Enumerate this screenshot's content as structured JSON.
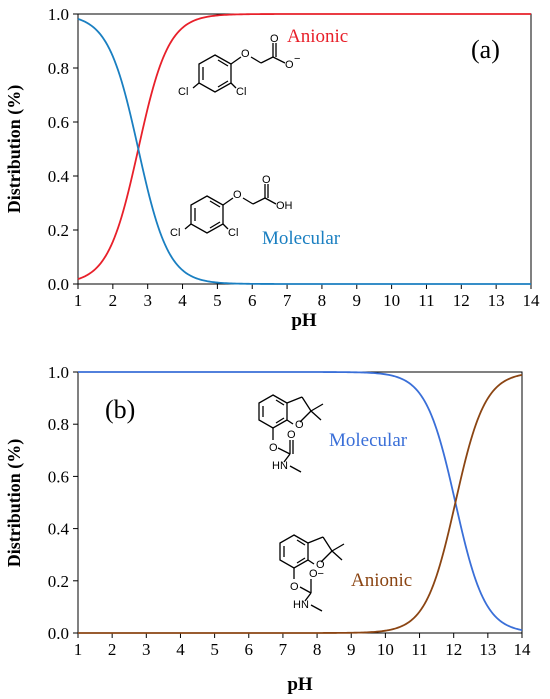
{
  "chart_data": [
    {
      "type": "line",
      "panel_label": "(a)",
      "xlabel": "pH",
      "ylabel": "Distribution (%)",
      "xlim": [
        1,
        14
      ],
      "ylim": [
        0,
        1
      ],
      "xticks": [
        "1",
        "2",
        "3",
        "4",
        "5",
        "6",
        "7",
        "8",
        "9",
        "10",
        "11",
        "12",
        "13",
        "14"
      ],
      "yticks": [
        "0.0",
        "0.2",
        "0.4",
        "0.6",
        "0.8",
        "1.0"
      ],
      "grid": false,
      "pKa": 2.73,
      "series": [
        {
          "name": "Anionic",
          "color": "#e8202a",
          "x": [
            1.0,
            1.25,
            1.5,
            1.75,
            2.0,
            2.25,
            2.5,
            2.75,
            3.0,
            3.25,
            3.5,
            3.75,
            4.0,
            4.25,
            4.5,
            4.75,
            5.0,
            5.5,
            6.0,
            7.0,
            8.0,
            9.0,
            10.0,
            11.0,
            12.0,
            13.0,
            14.0
          ],
          "y": [
            0.018,
            0.032,
            0.055,
            0.095,
            0.156,
            0.248,
            0.37,
            0.512,
            0.651,
            0.769,
            0.855,
            0.913,
            0.949,
            0.971,
            0.983,
            0.99,
            0.995,
            0.998,
            0.999,
            1.0,
            1.0,
            1.0,
            1.0,
            1.0,
            1.0,
            1.0,
            1.0
          ]
        },
        {
          "name": "Molecular",
          "color": "#1a7fc1",
          "x": [
            1.0,
            1.25,
            1.5,
            1.75,
            2.0,
            2.25,
            2.5,
            2.75,
            3.0,
            3.25,
            3.5,
            3.75,
            4.0,
            4.25,
            4.5,
            4.75,
            5.0,
            5.5,
            6.0,
            7.0,
            8.0,
            9.0,
            10.0,
            11.0,
            12.0,
            13.0,
            14.0
          ],
          "y": [
            0.982,
            0.968,
            0.945,
            0.905,
            0.844,
            0.752,
            0.63,
            0.488,
            0.349,
            0.231,
            0.145,
            0.087,
            0.051,
            0.029,
            0.017,
            0.01,
            0.005,
            0.002,
            0.001,
            0.0,
            0.0,
            0.0,
            0.0,
            0.0,
            0.0,
            0.0,
            0.0
          ]
        }
      ],
      "structures": [
        {
          "atoms": [
            "Cl",
            "Cl",
            "O",
            "O",
            "O"
          ],
          "charge": "−"
        },
        {
          "atoms": [
            "Cl",
            "Cl",
            "O",
            "O",
            "OH"
          ]
        }
      ]
    },
    {
      "type": "line",
      "panel_label": "(b)",
      "xlabel": "pH",
      "ylabel": "Distribution (%)",
      "xlim": [
        1,
        14
      ],
      "ylim": [
        0,
        1
      ],
      "xticks": [
        "1",
        "2",
        "3",
        "4",
        "5",
        "6",
        "7",
        "8",
        "9",
        "10",
        "11",
        "12",
        "13",
        "14"
      ],
      "yticks": [
        "0.0",
        "0.2",
        "0.4",
        "0.6",
        "0.8",
        "1.0"
      ],
      "grid": false,
      "pKa": 12.05,
      "series": [
        {
          "name": "Molecular",
          "color": "#3a6fd8",
          "x": [
            1.0,
            2.0,
            3.0,
            4.0,
            5.0,
            6.0,
            7.0,
            8.0,
            8.5,
            9.0,
            9.5,
            10.0,
            10.5,
            11.0,
            11.25,
            11.5,
            11.75,
            12.0,
            12.25,
            12.5,
            12.75,
            13.0,
            13.25,
            13.5,
            13.75,
            14.0
          ],
          "y": [
            1.0,
            1.0,
            1.0,
            1.0,
            1.0,
            1.0,
            1.0,
            0.9997,
            0.9992,
            0.998,
            0.992,
            0.975,
            0.928,
            0.808,
            0.715,
            0.595,
            0.464,
            0.337,
            0.229,
            0.147,
            0.092,
            0.056,
            0.032,
            0.018,
            0.011,
            0.006
          ]
        },
        {
          "name": "Anionic",
          "color": "#8b4513",
          "x": [
            1.0,
            2.0,
            3.0,
            4.0,
            5.0,
            6.0,
            7.0,
            8.0,
            8.5,
            9.0,
            9.5,
            10.0,
            10.5,
            11.0,
            11.25,
            11.5,
            11.75,
            12.0,
            12.25,
            12.5,
            12.75,
            13.0,
            13.25,
            13.5,
            13.75,
            14.0
          ],
          "y": [
            0.0,
            0.0,
            0.0,
            0.0,
            0.0,
            0.0,
            0.0,
            0.0003,
            0.0008,
            0.002,
            0.008,
            0.025,
            0.072,
            0.192,
            0.285,
            0.405,
            0.536,
            0.663,
            0.771,
            0.853,
            0.908,
            0.944,
            0.968,
            0.982,
            0.989,
            0.994
          ]
        }
      ],
      "structures": [
        {
          "atoms": [
            "O",
            "O",
            "O",
            "HN"
          ]
        },
        {
          "atoms": [
            "O",
            "O",
            "HN"
          ],
          "charge": "O−"
        }
      ]
    }
  ]
}
